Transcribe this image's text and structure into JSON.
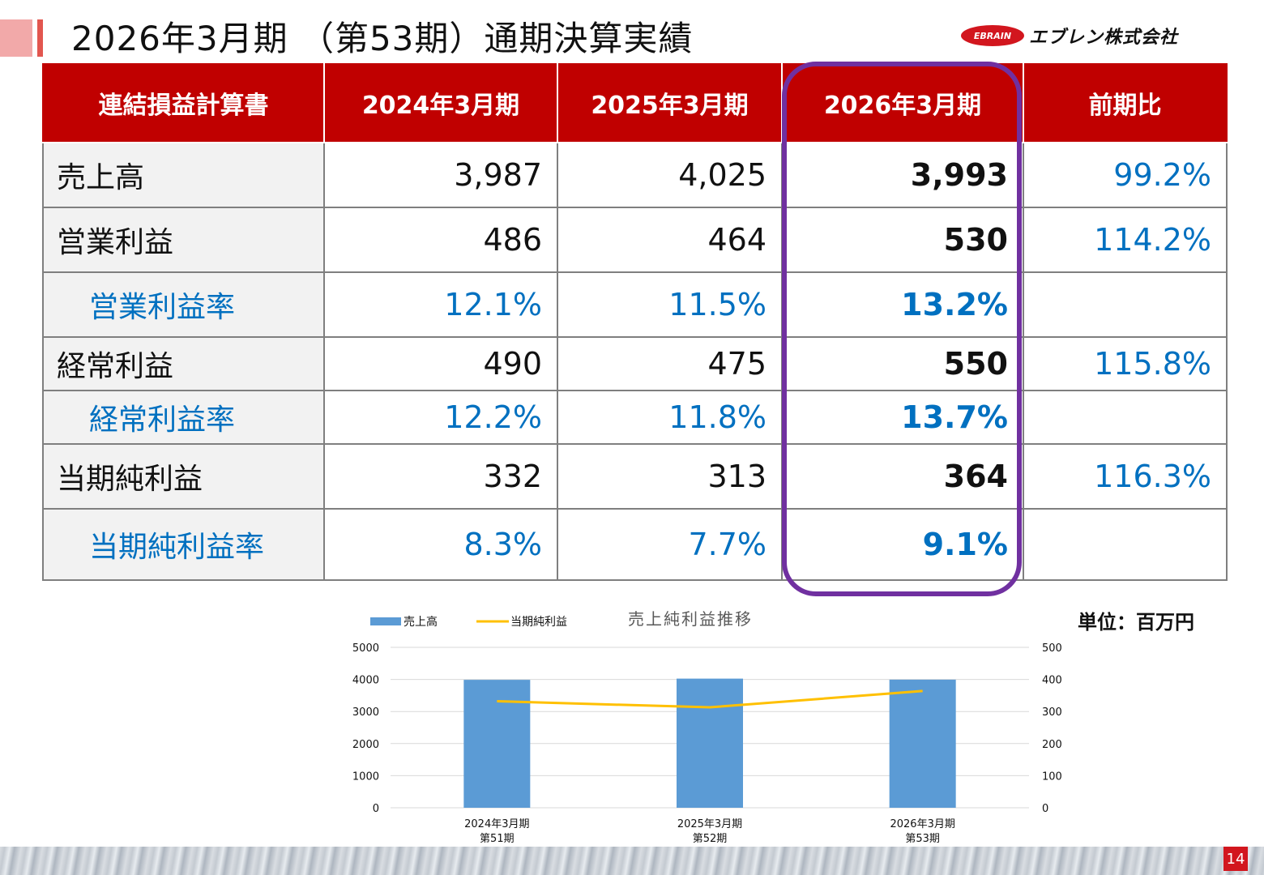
{
  "title": "2026年3月期 （第53期）通期決算実績",
  "logo": {
    "mark": "EBRAIN",
    "company": "エブレン株式会社"
  },
  "table": {
    "headers": [
      "連結損益計算書",
      "2024年3月期",
      "2025年3月期",
      "2026年3月期",
      "前期比"
    ],
    "rows": [
      {
        "label": "売上高",
        "v2024": "3,987",
        "v2025": "4,025",
        "v2026": "3,993",
        "ratio": "99.2%"
      },
      {
        "label": "営業利益",
        "v2024": "486",
        "v2025": "464",
        "v2026": "530",
        "ratio": "114.2%"
      },
      {
        "label": "営業利益率",
        "v2024": "12.1%",
        "v2025": "11.5%",
        "v2026": "13.2%",
        "ratio": ""
      },
      {
        "label": "経常利益",
        "v2024": "490",
        "v2025": "475",
        "v2026": "550",
        "ratio": "115.8%"
      },
      {
        "label": "経常利益率",
        "v2024": "12.2%",
        "v2025": "11.8%",
        "v2026": "13.7%",
        "ratio": ""
      },
      {
        "label": "当期純利益",
        "v2024": "332",
        "v2025": "313",
        "v2026": "364",
        "ratio": "116.3%"
      },
      {
        "label": "当期純利益率",
        "v2024": "8.3%",
        "v2025": "7.7%",
        "v2026": "9.1%",
        "ratio": ""
      }
    ]
  },
  "unit": "単位：百万円",
  "page_number": "14",
  "colors": {
    "header_red": "#c00000",
    "highlight_purple": "#7030a0",
    "pct_blue": "#0070c0",
    "bar_blue": "#5b9bd5",
    "line_yellow": "#ffc000"
  },
  "chart_data": {
    "type": "bar",
    "title": "売上純利益推移",
    "categories": [
      [
        "2024年3月期",
        "第51期"
      ],
      [
        "2025年3月期",
        "第52期"
      ],
      [
        "2026年3月期",
        "第53期"
      ]
    ],
    "series": [
      {
        "name": "売上高",
        "kind": "bar",
        "axis": "left",
        "values": [
          3987,
          4025,
          3993
        ]
      },
      {
        "name": "当期純利益",
        "kind": "line",
        "axis": "right",
        "values": [
          332,
          313,
          364
        ]
      }
    ],
    "ylim_left": [
      0,
      5000
    ],
    "ylim_right": [
      0,
      500
    ],
    "yticks_left": [
      0,
      1000,
      2000,
      3000,
      4000,
      5000
    ],
    "yticks_right": [
      0,
      100,
      200,
      300,
      400,
      500
    ],
    "legend_position": "top-left",
    "grid": true
  }
}
